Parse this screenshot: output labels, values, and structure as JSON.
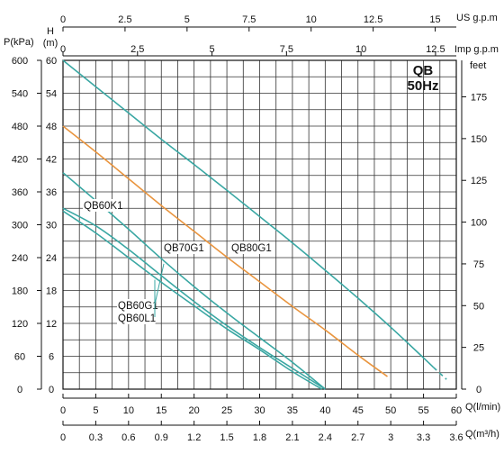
{
  "chart_data": {
    "type": "line",
    "title": "QB",
    "subtitle": "50Hz",
    "units": {
      "pressure": "P(kPa)",
      "head_h": "H",
      "head_m": "(m)",
      "feet": "feet",
      "us_gpm": "US  g.p.m",
      "imp_gpm": "Imp  g.p.m",
      "flow_lmin": "Q(l/min)",
      "flow_m3h": "Q(m³/h)"
    },
    "axes": {
      "x_lmin": {
        "min": 0,
        "max": 60,
        "ticks": [
          "0",
          "5",
          "10",
          "15",
          "20",
          "25",
          "30",
          "35",
          "40",
          "45",
          "50",
          "55",
          "60"
        ]
      },
      "x_m3h": {
        "ticks": [
          "0",
          "0.3",
          "0.6",
          "0.9",
          "1.2",
          "1.5",
          "1.8",
          "2.1",
          "2.4",
          "2.7",
          "3",
          "3.3",
          "3.6"
        ]
      },
      "x_us_gpm": {
        "ticks": [
          "0",
          "2.5",
          "5",
          "7.5",
          "10",
          "12.5",
          "15"
        ]
      },
      "x_imp_gpm": {
        "ticks": [
          "0",
          "2.5",
          "5",
          "7.5",
          "10",
          "12.5"
        ]
      },
      "y_head_m": {
        "min": 0,
        "max": 60,
        "ticks": [
          "0",
          "6",
          "12",
          "18",
          "24",
          "30",
          "36",
          "42",
          "48",
          "54",
          "60"
        ]
      },
      "y_pressure_kpa": {
        "ticks": [
          "0",
          "60",
          "120",
          "180",
          "240",
          "300",
          "360",
          "420",
          "480",
          "540",
          "600"
        ]
      },
      "y_feet": {
        "ticks": [
          "0",
          "25",
          "50",
          "75",
          "100",
          "125",
          "150",
          "175"
        ]
      }
    },
    "grid": true,
    "colors": {
      "teal": "#3aa7a3",
      "orange": "#e9953f",
      "grid": "#333333"
    },
    "series": [
      {
        "name": "QB80G1",
        "color": "#3aa7a3",
        "x": [
          0,
          5,
          10,
          15,
          20,
          25,
          30,
          35,
          40,
          45,
          50,
          55,
          56.5
        ],
        "y": [
          60,
          55.2,
          50.4,
          45.6,
          41,
          36.3,
          31.5,
          26.7,
          21.7,
          16.6,
          11.3,
          5.7,
          4
        ],
        "tail_x": [
          56.5,
          58.5
        ],
        "tail_y": [
          4,
          1.8
        ]
      },
      {
        "name": "QB70G1",
        "color": "#e9953f",
        "x": [
          0,
          5,
          10,
          15,
          20,
          25,
          30,
          35,
          40,
          45,
          49.5
        ],
        "y": [
          48,
          43.3,
          38.4,
          33.5,
          28.8,
          24.1,
          19.6,
          15.1,
          10.8,
          6.2,
          2.3
        ]
      },
      {
        "name": "QB60K1",
        "color": "#3aa7a3",
        "x": [
          0,
          5,
          10,
          15,
          20,
          25,
          30,
          35,
          40
        ],
        "y": [
          39.5,
          34.4,
          29.2,
          23.8,
          18.7,
          13.9,
          9.4,
          4.9,
          0
        ]
      },
      {
        "name": "QB60G1",
        "color": "#3aa7a3",
        "x": [
          0,
          5,
          10,
          15,
          20,
          25,
          30,
          35,
          40
        ],
        "y": [
          33,
          29.8,
          25.5,
          20.7,
          16,
          11.6,
          7.6,
          3.8,
          0
        ]
      },
      {
        "name": "QB60L1",
        "color": "#3aa7a3",
        "x": [
          0,
          5,
          10,
          15,
          20,
          25,
          30,
          35,
          39.5
        ],
        "y": [
          32.5,
          28.5,
          24,
          19.5,
          15.2,
          11,
          7.2,
          3.2,
          0
        ]
      }
    ],
    "annotations": [
      "QB60K1",
      "QB70G1",
      "QB80G1",
      "QB60G1",
      "QB60L1"
    ]
  }
}
